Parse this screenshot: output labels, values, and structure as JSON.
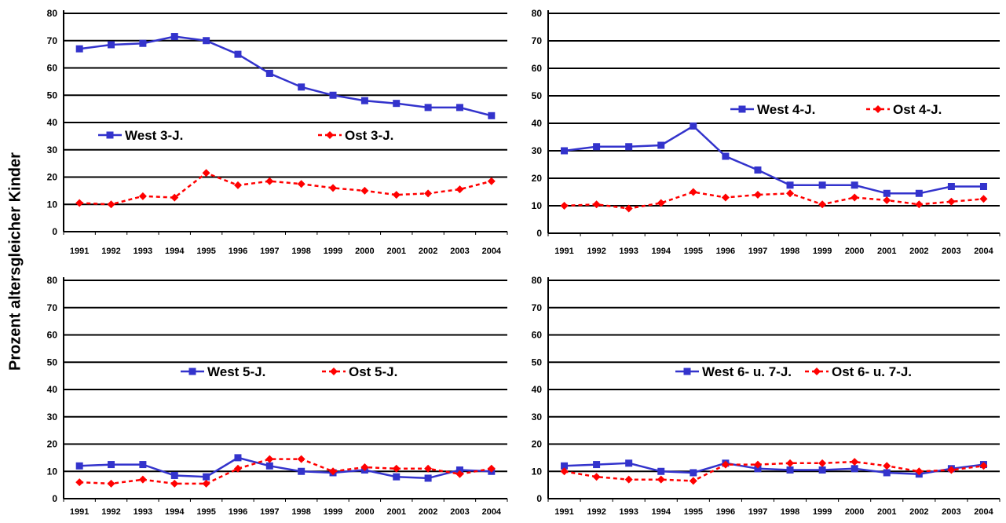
{
  "ylabel": "Prozent altersgleicher Kinder",
  "colors": {
    "west": "#3333cc",
    "ost": "#ff0000",
    "grid": "#000000"
  },
  "chart_data": [
    {
      "type": "line",
      "x": [
        1991,
        1992,
        1993,
        1994,
        1995,
        1996,
        1997,
        1998,
        1999,
        2000,
        2001,
        2002,
        2003,
        2004
      ],
      "xticklabels": [
        "1991",
        "1992",
        "1993",
        "1994",
        "1995",
        "1996",
        "1997",
        "1998",
        "1999",
        "2000",
        "2001",
        "2002",
        "2003",
        "2004"
      ],
      "yticks": [
        "0",
        "10",
        "20",
        "30",
        "40",
        "50",
        "60",
        "70",
        "80"
      ],
      "ylim": [
        0,
        80
      ],
      "grid": true,
      "legend_position": "middle",
      "series": [
        {
          "name": "West 3-J.",
          "marker": "square",
          "values": [
            67,
            68.5,
            69,
            71.5,
            70,
            65,
            58,
            53,
            50,
            48,
            47,
            45.5,
            45.5,
            42.5
          ]
        },
        {
          "name": "Ost 3-J.",
          "marker": "diamond",
          "dashed": true,
          "values": [
            10.5,
            10,
            13,
            12.5,
            21.5,
            17,
            18.5,
            17.5,
            16,
            15,
            13.5,
            14,
            15.5,
            18.5
          ]
        }
      ]
    },
    {
      "type": "line",
      "x": [
        1991,
        1992,
        1993,
        1994,
        1995,
        1996,
        1997,
        1998,
        1999,
        2000,
        2001,
        2002,
        2003,
        2004
      ],
      "xticklabels": [
        "1991",
        "1992",
        "1993",
        "1994",
        "1995",
        "1996",
        "1997",
        "1998",
        "1999",
        "2000",
        "2001",
        "2002",
        "2003",
        "2004"
      ],
      "yticks": [
        "0",
        "10",
        "20",
        "30",
        "40",
        "50",
        "60",
        "70",
        "80"
      ],
      "ylim": [
        0,
        80
      ],
      "grid": true,
      "legend_position": "upper-middle",
      "series": [
        {
          "name": "West 4-J.",
          "marker": "square",
          "values": [
            30,
            31.5,
            31.5,
            32,
            39,
            28,
            23,
            17.5,
            17.5,
            17.5,
            14.5,
            14.5,
            17,
            17
          ]
        },
        {
          "name": "Ost 4-J.",
          "marker": "diamond",
          "dashed": true,
          "values": [
            10,
            10.5,
            9,
            11,
            15,
            13,
            14,
            14.5,
            10.5,
            13,
            12,
            10.5,
            11.5,
            12.5
          ]
        }
      ]
    },
    {
      "type": "line",
      "x": [
        1991,
        1992,
        1993,
        1994,
        1995,
        1996,
        1997,
        1998,
        1999,
        2000,
        2001,
        2002,
        2003,
        2004
      ],
      "xticklabels": [
        "1991",
        "1992",
        "1993",
        "1994",
        "1995",
        "1996",
        "1997",
        "1998",
        "1999",
        "2000",
        "2001",
        "2002",
        "2003",
        "2004"
      ],
      "yticks": [
        "0",
        "10",
        "20",
        "30",
        "40",
        "50",
        "60",
        "70",
        "80"
      ],
      "ylim": [
        0,
        80
      ],
      "grid": true,
      "legend_position": "middle",
      "series": [
        {
          "name": "West 5-J.",
          "marker": "square",
          "values": [
            12,
            12.5,
            12.5,
            8.5,
            8,
            15,
            12,
            10,
            9.5,
            10.5,
            8,
            7.5,
            10.5,
            10
          ]
        },
        {
          "name": "Ost 5-J.",
          "marker": "diamond",
          "dashed": true,
          "values": [
            6,
            5.5,
            7,
            5.5,
            5.5,
            11,
            14.5,
            14.5,
            10,
            11.5,
            11,
            11,
            9,
            11
          ]
        }
      ]
    },
    {
      "type": "line",
      "x": [
        1991,
        1992,
        1993,
        1994,
        1995,
        1996,
        1997,
        1998,
        1999,
        2000,
        2001,
        2002,
        2003,
        2004
      ],
      "xticklabels": [
        "1991",
        "1992",
        "1993",
        "1994",
        "1995",
        "1996",
        "1997",
        "1998",
        "1999",
        "2000",
        "2001",
        "2002",
        "2003",
        "2004"
      ],
      "yticks": [
        "0",
        "10",
        "20",
        "30",
        "40",
        "50",
        "60",
        "70",
        "80"
      ],
      "ylim": [
        0,
        80
      ],
      "grid": true,
      "legend_position": "middle",
      "series": [
        {
          "name": "West 6- u. 7-J.",
          "marker": "square",
          "values": [
            12,
            12.5,
            13,
            10,
            9.5,
            13,
            11,
            10.5,
            10.5,
            11,
            9.5,
            9,
            11,
            12.5
          ]
        },
        {
          "name": "Ost 6- u. 7-J.",
          "marker": "diamond",
          "dashed": true,
          "values": [
            10,
            8,
            7,
            7,
            6.5,
            12.5,
            12.5,
            13,
            13,
            13.5,
            12,
            10,
            10.5,
            12
          ]
        }
      ]
    }
  ]
}
